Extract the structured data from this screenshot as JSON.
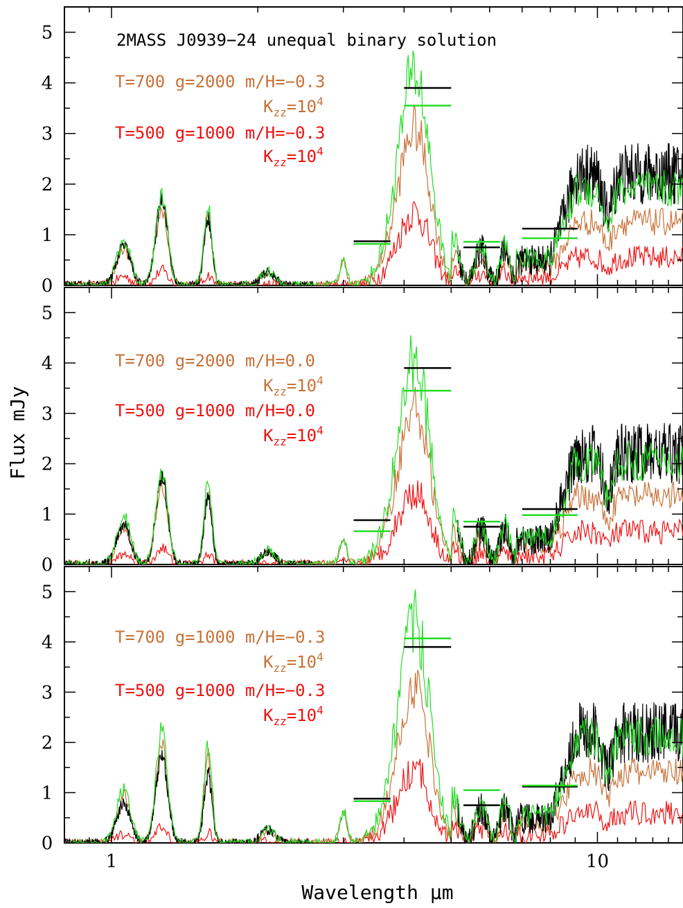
{
  "chart_data": {
    "type": "line",
    "x_scale": "log",
    "xlim": [
      0.8,
      15
    ],
    "ylim": [
      0,
      5.5
    ],
    "xlabel": "Wavelength μm",
    "ylabel": "Flux mJy",
    "x_ticks": [
      {
        "value": 1,
        "label": "1"
      },
      {
        "value": 10,
        "label": "10"
      }
    ],
    "y_ticks": [
      0,
      1,
      2,
      3,
      4,
      5
    ],
    "colors": {
      "observed": "#000000",
      "sum_model": "#22dd22",
      "component_hot": "#c87137",
      "component_cold": "#ee1111"
    },
    "panels": [
      {
        "title": "2MASS J0939−24 unequal binary solution",
        "annotations": [
          {
            "text": "T=700 g=2000 m/H=−0.3",
            "color": "#c87137"
          },
          {
            "prefix": "K",
            "sub": "zz",
            "suffix": "=10",
            "sup": "4",
            "color": "#c87137"
          },
          {
            "text": "T=500 g=1000 m/H=−0.3",
            "color": "#ee1111"
          },
          {
            "prefix": "K",
            "sub": "zz",
            "suffix": "=10",
            "sup": "4",
            "color": "#ee1111"
          }
        ],
        "photometry": [
          {
            "x0": 3.15,
            "x1": 3.75,
            "black": 0.87,
            "green": 0.82
          },
          {
            "x0": 4.0,
            "x1": 5.0,
            "black": 3.9,
            "green": 3.55
          },
          {
            "x0": 5.3,
            "x1": 6.3,
            "black": 0.75,
            "green": 0.86
          },
          {
            "x0": 7.0,
            "x1": 9.1,
            "black": 1.12,
            "green": 0.93
          }
        ],
        "green_peak": 5.4,
        "black_peak": 3.45,
        "hot_scale": 1.0,
        "cold_scale": 1.0,
        "mir": {
          "black": 2.2,
          "green": 1.9,
          "hot": 1.25,
          "cold": 0.55
        }
      },
      {
        "title": "",
        "annotations": [
          {
            "text": "T=700 g=2000 m/H=0.0",
            "color": "#c87137"
          },
          {
            "prefix": "K",
            "sub": "zz",
            "suffix": "=10",
            "sup": "4",
            "color": "#c87137"
          },
          {
            "text": "T=500 g=1000 m/H=0.0",
            "color": "#ee1111"
          },
          {
            "prefix": "K",
            "sub": "zz",
            "suffix": "=10",
            "sup": "4",
            "color": "#ee1111"
          }
        ],
        "photometry": [
          {
            "x0": 3.15,
            "x1": 3.75,
            "black": 0.88,
            "green": 0.66
          },
          {
            "x0": 4.0,
            "x1": 5.0,
            "black": 3.9,
            "green": 3.45
          },
          {
            "x0": 5.3,
            "x1": 6.3,
            "black": 0.75,
            "green": 0.85
          },
          {
            "x0": 7.0,
            "x1": 9.1,
            "black": 1.1,
            "green": 0.98
          }
        ],
        "green_peak": 5.2,
        "black_peak": 3.45,
        "hot_scale": 1.05,
        "cold_scale": 1.15,
        "mir": {
          "black": 2.2,
          "green": 2.05,
          "hot": 1.35,
          "cold": 0.65
        }
      },
      {
        "title": "",
        "annotations": [
          {
            "text": "T=700 g=1000 m/H=−0.3",
            "color": "#c87137"
          },
          {
            "prefix": "K",
            "sub": "zz",
            "suffix": "=10",
            "sup": "4",
            "color": "#c87137"
          },
          {
            "text": "T=500 g=1000 m/H=−0.3",
            "color": "#ee1111"
          },
          {
            "prefix": "K",
            "sub": "zz",
            "suffix": "=10",
            "sup": "4",
            "color": "#ee1111"
          }
        ],
        "photometry": [
          {
            "x0": 3.15,
            "x1": 3.75,
            "black": 0.88,
            "green": 0.83
          },
          {
            "x0": 4.0,
            "x1": 5.0,
            "black": 3.9,
            "green": 4.07
          },
          {
            "x0": 5.3,
            "x1": 6.3,
            "black": 0.75,
            "green": 1.05
          },
          {
            "x0": 7.0,
            "x1": 9.1,
            "black": 1.12,
            "green": 1.14
          }
        ],
        "green_peak": 5.6,
        "black_peak": 3.45,
        "hot_scale": 1.3,
        "cold_scale": 1.0,
        "mir": {
          "black": 2.2,
          "green": 2.1,
          "hot": 1.4,
          "cold": 0.6
        }
      }
    ]
  }
}
